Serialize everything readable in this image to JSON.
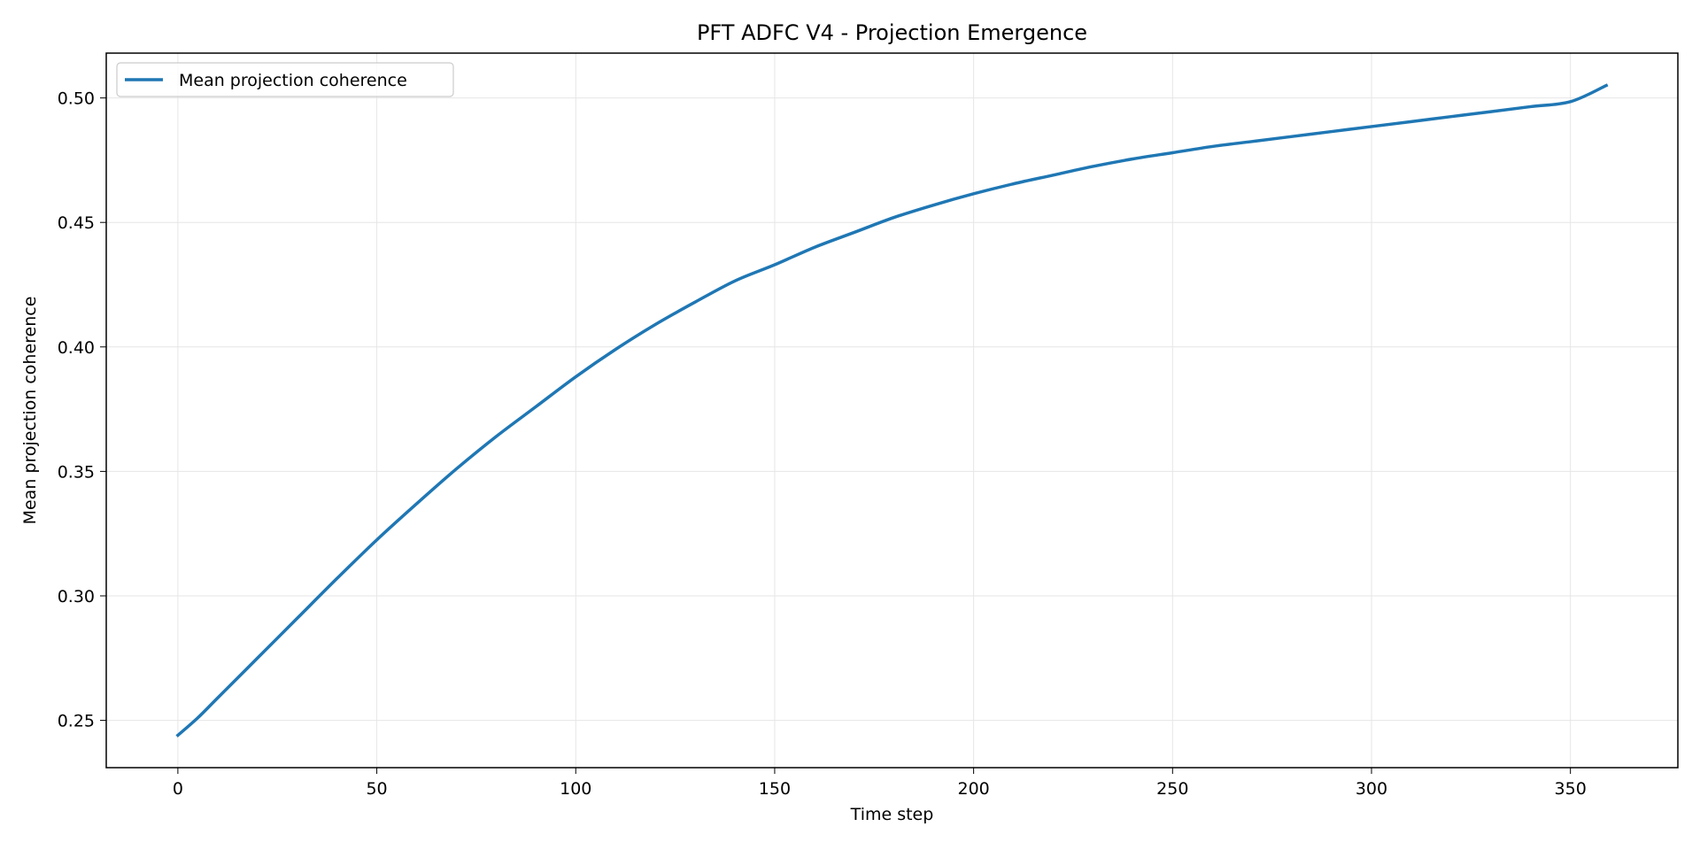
{
  "chart_data": {
    "type": "line",
    "title": "PFT ADFC V4 - Projection Emergence",
    "xlabel": "Time step",
    "ylabel": "Mean projection coherence",
    "xlim": [
      -18,
      377
    ],
    "ylim": [
      0.231,
      0.518
    ],
    "xticks": [
      0,
      50,
      100,
      150,
      200,
      250,
      300,
      350
    ],
    "yticks": [
      0.25,
      0.3,
      0.35,
      0.4,
      0.45,
      0.5
    ],
    "xtick_labels": [
      "0",
      "50",
      "100",
      "150",
      "200",
      "250",
      "300",
      "350"
    ],
    "ytick_labels": [
      "0.25",
      "0.30",
      "0.35",
      "0.40",
      "0.45",
      "0.50"
    ],
    "grid": true,
    "legend": {
      "placement": "top-left"
    },
    "series": [
      {
        "name": "Mean projection coherence",
        "color": "#1f77b4",
        "x": [
          0,
          5,
          10,
          20,
          30,
          40,
          50,
          60,
          70,
          80,
          90,
          100,
          110,
          120,
          130,
          140,
          150,
          160,
          170,
          180,
          190,
          200,
          210,
          220,
          230,
          240,
          250,
          260,
          270,
          280,
          290,
          300,
          310,
          320,
          330,
          340,
          350,
          359
        ],
        "y": [
          0.244,
          0.251,
          0.259,
          0.275,
          0.291,
          0.307,
          0.3225,
          0.337,
          0.351,
          0.364,
          0.376,
          0.388,
          0.399,
          0.409,
          0.418,
          0.4265,
          0.433,
          0.44,
          0.446,
          0.452,
          0.457,
          0.4615,
          0.4655,
          0.469,
          0.4725,
          0.4755,
          0.478,
          0.4805,
          0.4825,
          0.4845,
          0.4865,
          0.4885,
          0.4905,
          0.4925,
          0.4945,
          0.4965,
          0.4985,
          0.505
        ]
      }
    ]
  }
}
